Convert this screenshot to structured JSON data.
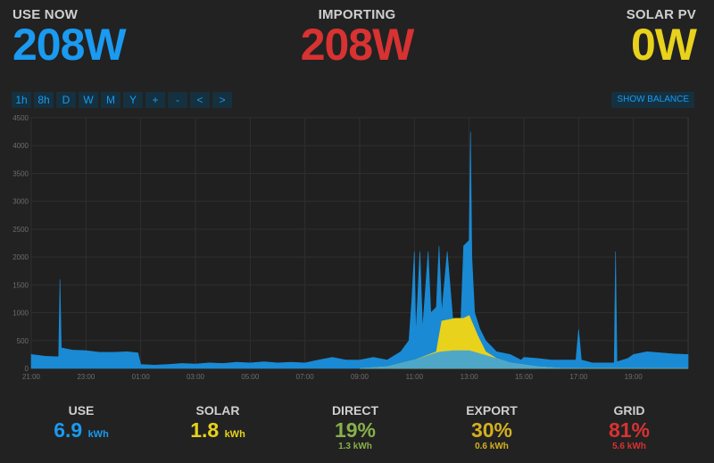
{
  "header": {
    "use_now": {
      "label": "USE NOW",
      "value": "208W",
      "color": "#1a9af0"
    },
    "importing": {
      "label": "IMPORTING",
      "value": "208W",
      "color": "#d83232"
    },
    "solar_pv": {
      "label": "SOLAR PV",
      "value": "0W",
      "color": "#e8d21c"
    }
  },
  "zoom_buttons": [
    "1h",
    "8h",
    "D",
    "W",
    "M",
    "Y",
    "+",
    "-",
    "<",
    ">"
  ],
  "show_balance_label": "SHOW BALANCE",
  "chart_data": {
    "type": "area",
    "y_ticks": [
      "0",
      "500",
      "1000",
      "1500",
      "2000",
      "2500",
      "3000",
      "3500",
      "4000",
      "4500"
    ],
    "x_ticks": [
      "23:00",
      "01:00",
      "03:00",
      "05:00",
      "07:00",
      "09:00",
      "11:00",
      "13:00",
      "15:00",
      "17:00",
      "19:00",
      "21:00"
    ],
    "ylim": [
      0,
      4500
    ],
    "xlim": [
      21.0,
      45.0
    ],
    "grid": true,
    "series": [
      {
        "color": "#1a8ad4",
        "points": [
          [
            21.0,
            250
          ],
          [
            21.5,
            220
          ],
          [
            22.0,
            210
          ],
          [
            22.05,
            1600
          ],
          [
            22.1,
            370
          ],
          [
            22.5,
            330
          ],
          [
            23.0,
            320
          ],
          [
            23.5,
            290
          ],
          [
            24.0,
            290
          ],
          [
            24.5,
            300
          ],
          [
            24.9,
            280
          ],
          [
            25.0,
            70
          ],
          [
            25.5,
            60
          ],
          [
            26.0,
            70
          ],
          [
            26.5,
            90
          ],
          [
            27.0,
            80
          ],
          [
            27.5,
            100
          ],
          [
            28.0,
            90
          ],
          [
            28.5,
            110
          ],
          [
            29.0,
            100
          ],
          [
            29.5,
            120
          ],
          [
            30.0,
            100
          ],
          [
            30.5,
            110
          ],
          [
            31.0,
            100
          ],
          [
            31.5,
            150
          ],
          [
            32.0,
            200
          ],
          [
            32.5,
            150
          ],
          [
            33.0,
            150
          ],
          [
            33.5,
            200
          ],
          [
            34.0,
            150
          ],
          [
            34.5,
            300
          ],
          [
            34.8,
            500
          ],
          [
            34.9,
            1200
          ],
          [
            35.0,
            2100
          ],
          [
            35.05,
            600
          ],
          [
            35.2,
            2100
          ],
          [
            35.3,
            700
          ],
          [
            35.5,
            2100
          ],
          [
            35.6,
            1000
          ],
          [
            35.8,
            1100
          ],
          [
            35.9,
            2200
          ],
          [
            36.0,
            1000
          ],
          [
            36.2,
            2100
          ],
          [
            36.4,
            900
          ],
          [
            36.7,
            900
          ],
          [
            36.8,
            2200
          ],
          [
            37.0,
            2300
          ],
          [
            37.05,
            4250
          ],
          [
            37.1,
            2000
          ],
          [
            37.2,
            1000
          ],
          [
            37.4,
            700
          ],
          [
            37.6,
            500
          ],
          [
            37.8,
            400
          ],
          [
            38.0,
            300
          ],
          [
            38.5,
            250
          ],
          [
            38.9,
            150
          ],
          [
            39.0,
            200
          ],
          [
            39.5,
            180
          ],
          [
            40.0,
            150
          ],
          [
            40.5,
            150
          ],
          [
            40.9,
            150
          ],
          [
            41.0,
            700
          ],
          [
            41.1,
            150
          ],
          [
            41.5,
            100
          ],
          [
            42.0,
            100
          ],
          [
            42.3,
            100
          ],
          [
            42.35,
            2100
          ],
          [
            42.4,
            120
          ],
          [
            42.8,
            180
          ],
          [
            43.0,
            250
          ],
          [
            43.5,
            300
          ],
          [
            44.0,
            280
          ],
          [
            44.5,
            260
          ],
          [
            45.0,
            250
          ]
        ]
      },
      {
        "color": "#e8d21c",
        "points": [
          [
            33.0,
            0
          ],
          [
            34.0,
            30
          ],
          [
            35.0,
            150
          ],
          [
            35.8,
            300
          ],
          [
            36.0,
            850
          ],
          [
            36.5,
            900
          ],
          [
            36.8,
            900
          ],
          [
            37.0,
            950
          ],
          [
            37.3,
            600
          ],
          [
            37.6,
            300
          ],
          [
            38.0,
            180
          ],
          [
            38.5,
            100
          ],
          [
            39.5,
            30
          ],
          [
            40.5,
            0
          ],
          [
            45.0,
            0
          ]
        ]
      },
      {
        "color": "#4fa7c8",
        "points": [
          [
            33.0,
            0
          ],
          [
            34.0,
            30
          ],
          [
            35.0,
            150
          ],
          [
            35.8,
            280
          ],
          [
            36.0,
            300
          ],
          [
            36.5,
            320
          ],
          [
            37.0,
            320
          ],
          [
            37.5,
            250
          ],
          [
            38.0,
            180
          ],
          [
            38.5,
            100
          ],
          [
            39.5,
            30
          ],
          [
            40.5,
            0
          ],
          [
            45.0,
            0
          ]
        ]
      }
    ]
  },
  "summary": {
    "use": {
      "label": "USE",
      "value": "6.9",
      "unit": "kWh",
      "color": "#1a9af0"
    },
    "solar": {
      "label": "SOLAR",
      "value": "1.8",
      "unit": "kWh",
      "color": "#e8d21c"
    },
    "direct": {
      "label": "DIRECT",
      "value": "19%",
      "sub": "1.3 kWh",
      "color": "#88b04b"
    },
    "export": {
      "label": "EXPORT",
      "value": "30%",
      "sub": "0.6 kWh",
      "color": "#d4b020"
    },
    "grid": {
      "label": "GRID",
      "value": "81%",
      "sub": "5.6 kWh",
      "color": "#d83232"
    }
  }
}
